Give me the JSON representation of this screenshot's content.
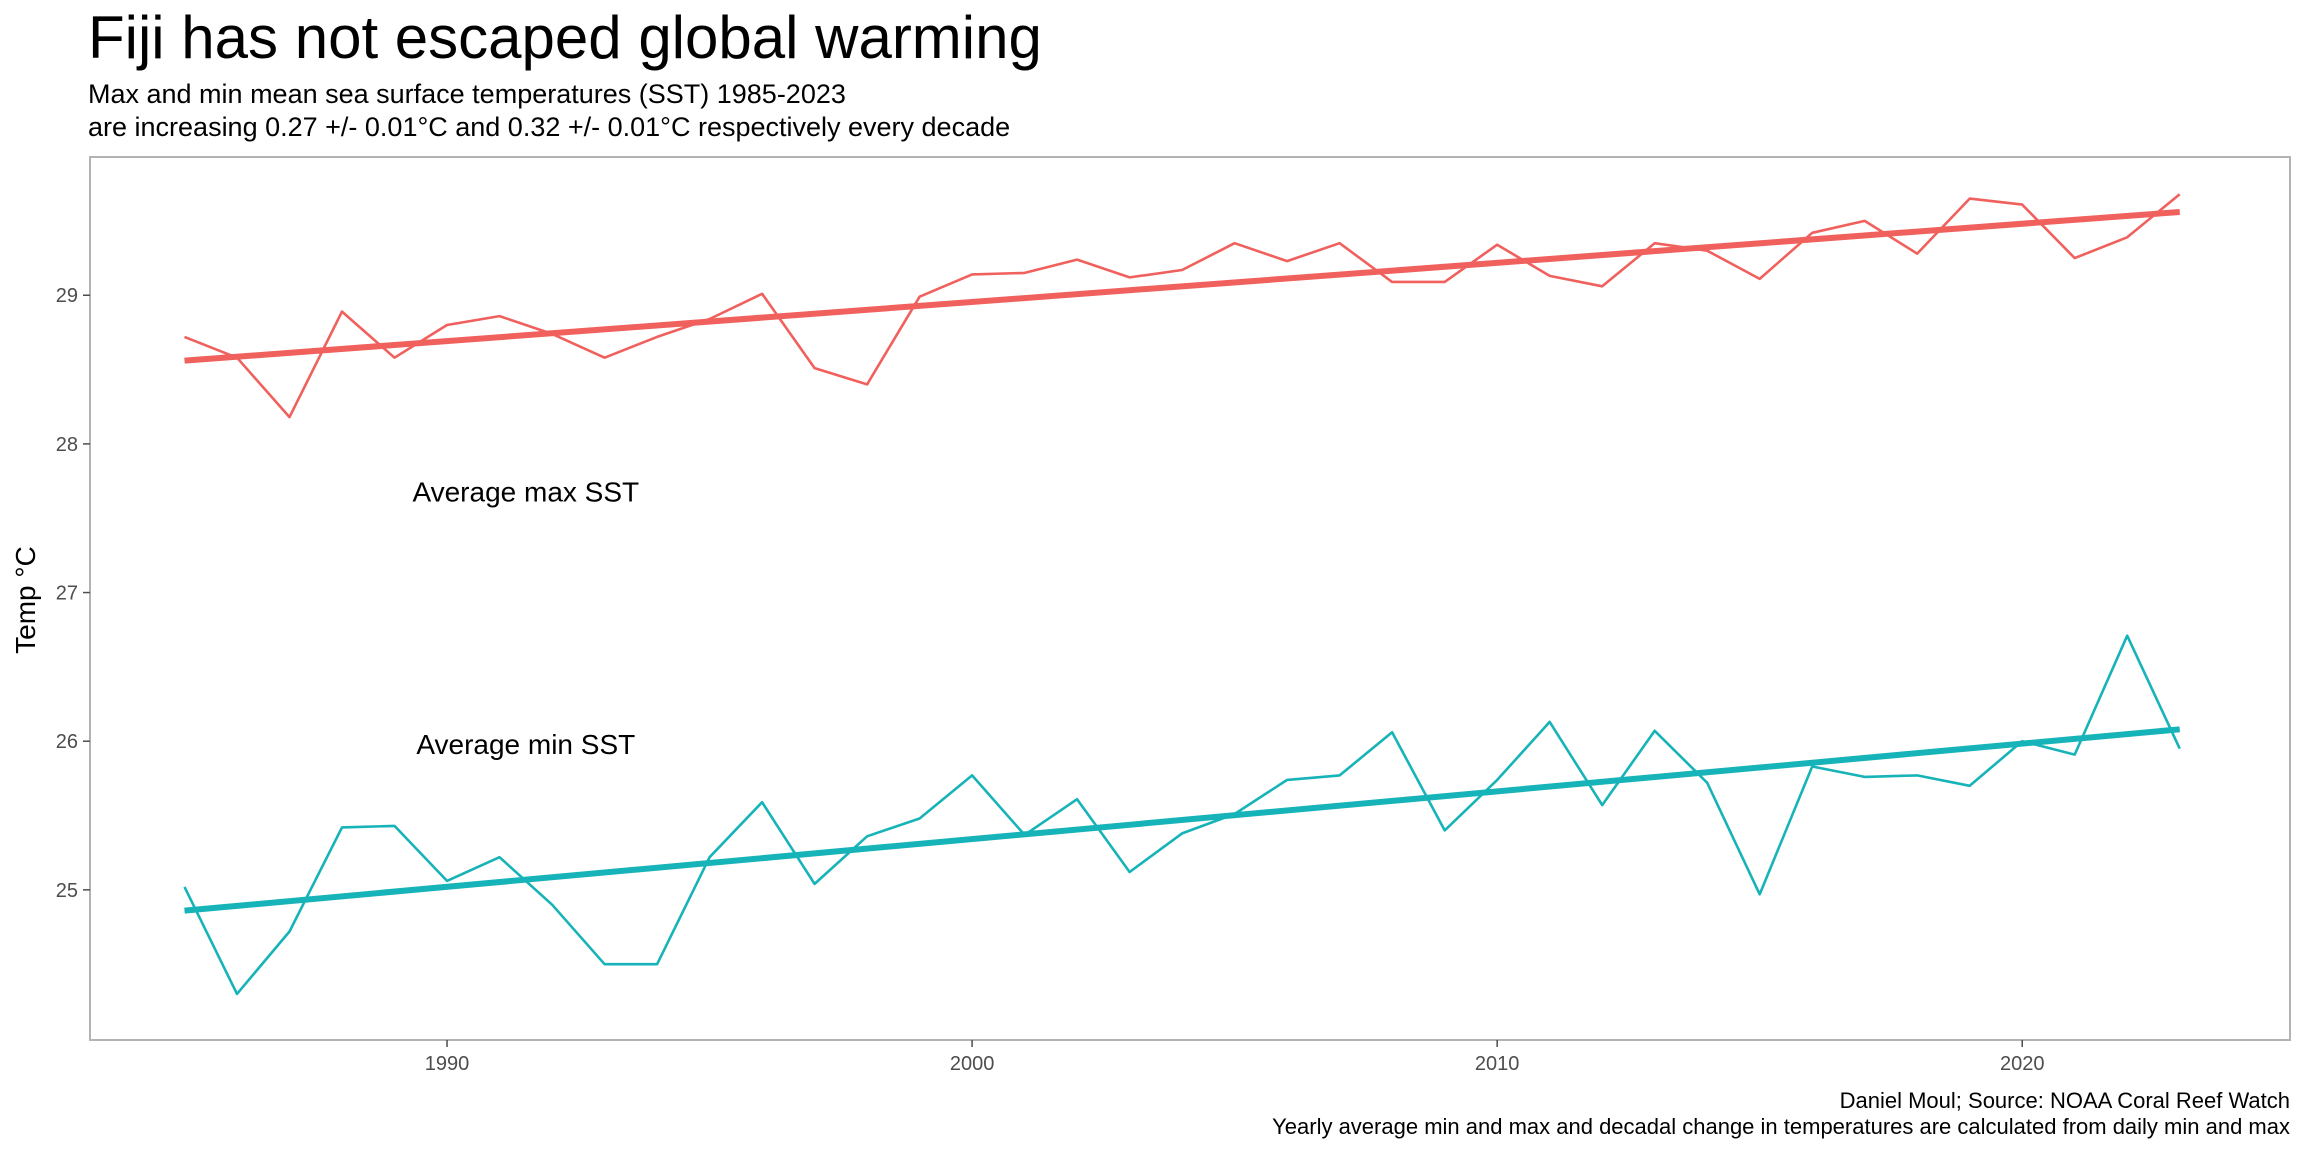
{
  "chart_data": {
    "type": "line",
    "title": "Fiji has not escaped global warming",
    "subtitle_lines": [
      "Max and min mean sea surface temperatures (SST) 1985-2023",
      "are increasing 0.27 +/- 0.01°C and 0.32 +/- 0.01°C respectively every decade"
    ],
    "xlabel": "",
    "ylabel": "Temp °C",
    "caption_lines": [
      "Daniel Moul; Source: NOAA Coral Reef Watch",
      "Yearly average min and max and decadal change in temperatures are calculated from daily min and max"
    ],
    "xlim": [
      1983.2,
      2025.1
    ],
    "ylim": [
      23.99,
      29.93
    ],
    "x_ticks": [
      1990,
      2000,
      2010,
      2020
    ],
    "y_ticks": [
      25,
      26,
      27,
      28,
      29
    ],
    "grid": false,
    "legend": "none",
    "x": [
      1985,
      1986,
      1987,
      1988,
      1989,
      1990,
      1991,
      1992,
      1993,
      1994,
      1995,
      1996,
      1997,
      1998,
      1999,
      2000,
      2001,
      2002,
      2003,
      2004,
      2005,
      2006,
      2007,
      2008,
      2009,
      2010,
      2011,
      2012,
      2013,
      2014,
      2015,
      2016,
      2017,
      2018,
      2019,
      2020,
      2021,
      2022,
      2023
    ],
    "series": [
      {
        "label": "Average max SST",
        "color": "#F0605D",
        "values": [
          28.72,
          28.58,
          28.18,
          28.89,
          28.58,
          28.8,
          28.86,
          28.74,
          28.58,
          28.72,
          28.84,
          29.01,
          28.51,
          28.4,
          28.99,
          29.14,
          29.15,
          29.24,
          29.12,
          29.17,
          29.35,
          29.23,
          29.35,
          29.09,
          29.09,
          29.34,
          29.13,
          29.06,
          29.35,
          29.3,
          29.11,
          29.42,
          29.5,
          29.28,
          29.65,
          29.61,
          29.25,
          29.39,
          29.68
        ],
        "trend": [
          28.56,
          29.56
        ]
      },
      {
        "label": "Average min SST",
        "color": "#16B3B8",
        "values": [
          25.02,
          24.3,
          24.72,
          25.42,
          25.43,
          25.06,
          25.22,
          24.9,
          24.5,
          24.5,
          25.22,
          25.59,
          25.04,
          25.36,
          25.48,
          25.77,
          25.37,
          25.61,
          25.12,
          25.38,
          25.51,
          25.74,
          25.77,
          26.06,
          25.4,
          25.74,
          26.13,
          25.57,
          26.07,
          25.72,
          24.97,
          25.83,
          25.76,
          25.77,
          25.7,
          26.0,
          25.91,
          26.71,
          25.95
        ],
        "trend": [
          24.86,
          26.08
        ]
      }
    ],
    "series_label_positions": [
      {
        "x": 1991.5,
        "y": 27.68
      },
      {
        "x": 1991.5,
        "y": 25.98
      }
    ]
  }
}
